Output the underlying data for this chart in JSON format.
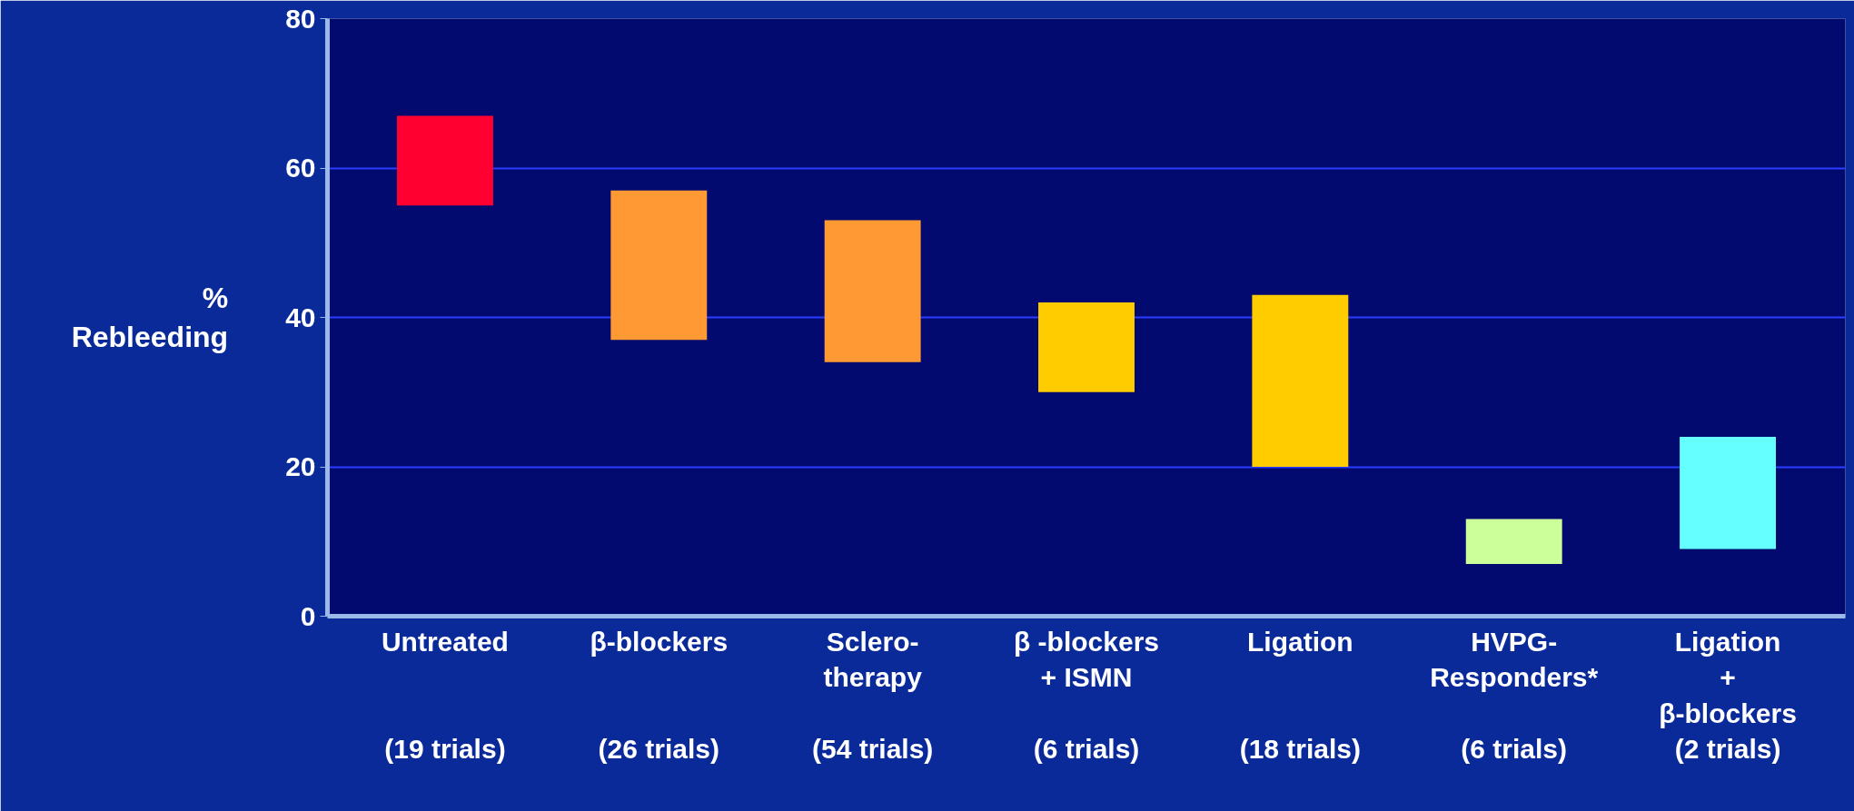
{
  "chart_data": {
    "type": "bar",
    "ylabel": "%\nRebleeding",
    "categories": [
      "Untreated\n(19 trials)",
      "β-blockers\n(26 trials)",
      "Sclero-\ntherapy\n(54 trials)",
      "β -blockers\n+ ISMN\n(6 trials)",
      "Ligation\n(18 trials)",
      "HVPG-\nResponders*\n(6 trials)",
      "Ligation\n+\nβ-blockers\n(2 trials)"
    ],
    "base": [
      55,
      37,
      34,
      30,
      20,
      7,
      9
    ],
    "values": [
      12,
      20,
      19,
      12,
      23,
      6,
      15
    ],
    "colors": [
      "#ff0030",
      "#ff9933",
      "#ff9933",
      "#ffcc00",
      "#ffcc00",
      "#ccff99",
      "#66ffff"
    ],
    "ylim": [
      0,
      80
    ],
    "yticks": [
      0,
      20,
      40,
      60,
      80
    ],
    "grid": "y"
  }
}
